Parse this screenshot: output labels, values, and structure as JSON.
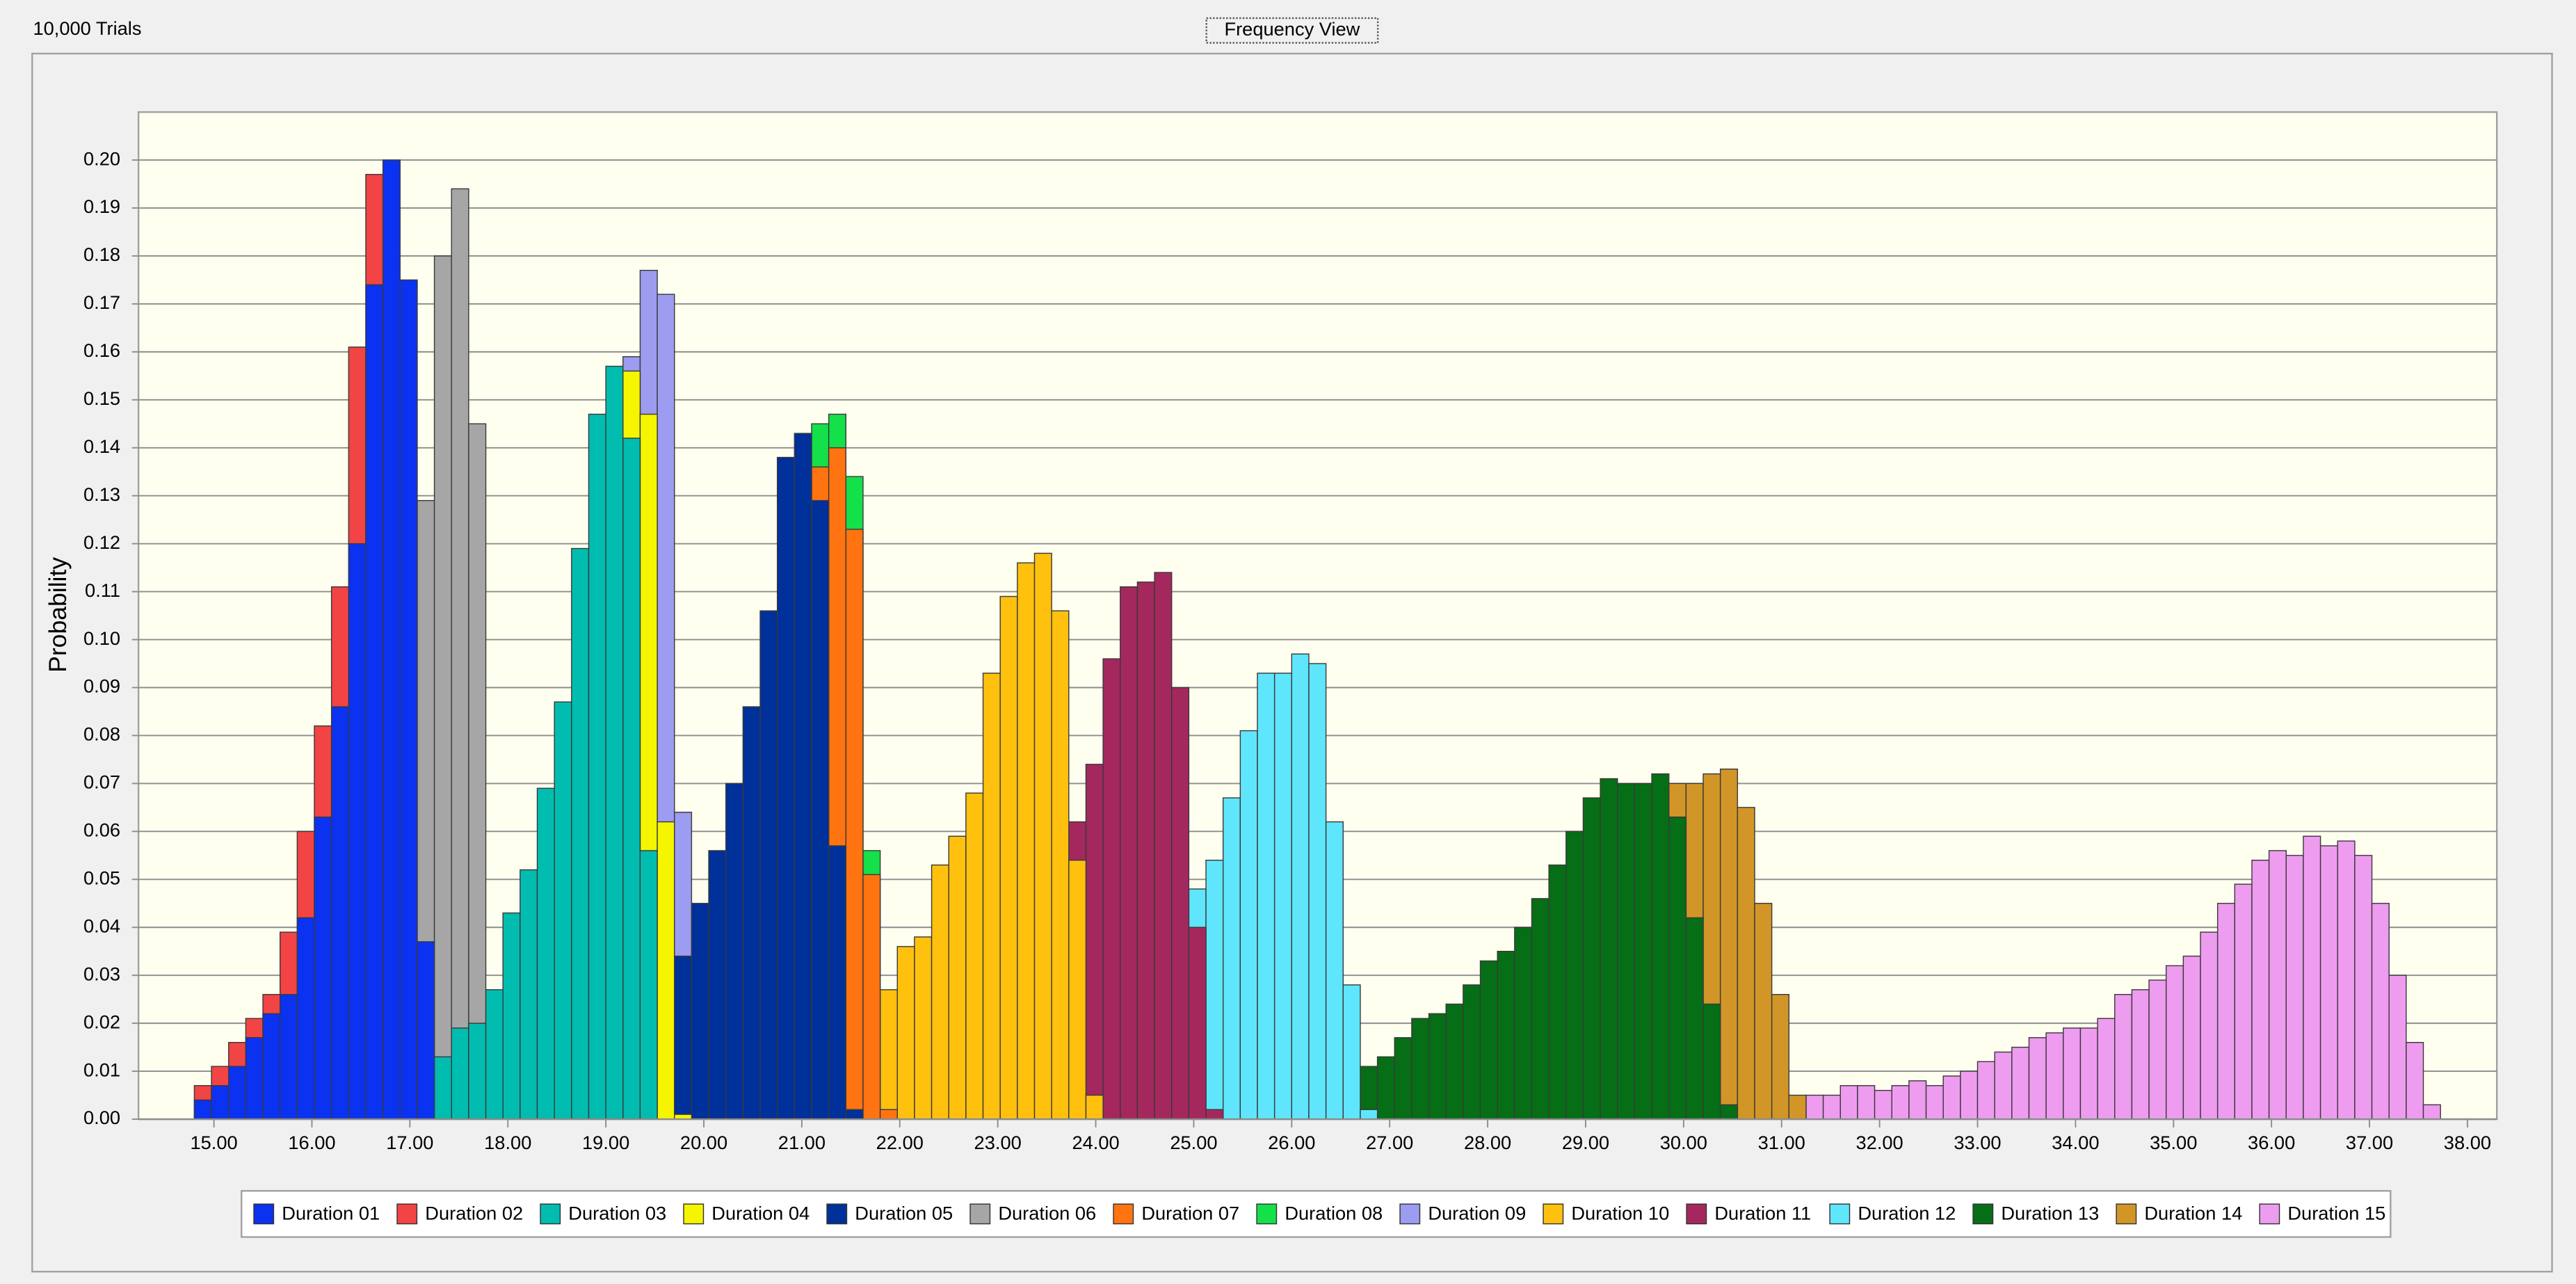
{
  "chart_data": {
    "type": "histogram",
    "trials_label": "10,000 Trials",
    "view_label": "Frequency View",
    "ylabel": "Probability",
    "xlim": [
      14.23,
      38.3
    ],
    "ylim": [
      0,
      0.21
    ],
    "xticks": [
      {
        "value": 15,
        "label": "15.00"
      },
      {
        "value": 16,
        "label": "16.00"
      },
      {
        "value": 17,
        "label": "17.00"
      },
      {
        "value": 18,
        "label": "18.00"
      },
      {
        "value": 19,
        "label": "19.00"
      },
      {
        "value": 20,
        "label": "20.00"
      },
      {
        "value": 21,
        "label": "21.00"
      },
      {
        "value": 22,
        "label": "22.00"
      },
      {
        "value": 23,
        "label": "23.00"
      },
      {
        "value": 24,
        "label": "24.00"
      },
      {
        "value": 25,
        "label": "25.00"
      },
      {
        "value": 26,
        "label": "26.00"
      },
      {
        "value": 27,
        "label": "27.00"
      },
      {
        "value": 28,
        "label": "28.00"
      },
      {
        "value": 29,
        "label": "29.00"
      },
      {
        "value": 30,
        "label": "30.00"
      },
      {
        "value": 31,
        "label": "31.00"
      },
      {
        "value": 32,
        "label": "32.00"
      },
      {
        "value": 33,
        "label": "33.00"
      },
      {
        "value": 34,
        "label": "34.00"
      },
      {
        "value": 35,
        "label": "35.00"
      },
      {
        "value": 36,
        "label": "36.00"
      },
      {
        "value": 37,
        "label": "37.00"
      },
      {
        "value": 38,
        "label": "38.00"
      }
    ],
    "yticks": [
      {
        "value": 0,
        "label": "0.00"
      },
      0.01,
      0.02,
      0.03,
      0.04,
      0.05,
      0.06,
      0.07,
      0.08,
      0.09,
      {
        "value": 0.1,
        "label": "0.10"
      },
      0.11,
      0.12,
      0.13,
      0.14,
      0.15,
      0.16,
      0.17,
      0.18,
      0.19,
      {
        "value": 0.2,
        "label": "0.20"
      }
    ],
    "grid": true,
    "legend": "bottom",
    "series": [
      {
        "name": "Duration 01",
        "color": "#0a32f0",
        "bins": [
          14.8,
          14.975,
          15.15,
          15.325,
          15.5,
          15.675,
          15.85,
          16.025,
          16.2,
          16.375,
          16.55,
          16.725,
          16.9,
          17.075,
          17.25
        ],
        "values": [
          0.004,
          0.007,
          0.011,
          0.017,
          0.022,
          0.026,
          0.042,
          0.063,
          0.086,
          0.12,
          0.174,
          0.2,
          0.175,
          0.037
        ]
      },
      {
        "name": "Duration 02",
        "color": "#f24444",
        "bins": [
          14.8,
          14.975,
          15.15,
          15.325,
          15.5,
          15.675,
          15.85,
          16.025,
          16.2,
          16.375,
          16.55,
          16.725
        ],
        "values": [
          0.007,
          0.011,
          0.016,
          0.021,
          0.026,
          0.039,
          0.06,
          0.082,
          0.111,
          0.161,
          0.197
        ]
      },
      {
        "name": "Duration 03",
        "color": "#00bdb0",
        "bins": [
          17.25,
          17.425,
          17.6,
          17.775,
          17.95,
          18.125,
          18.3,
          18.475,
          18.65,
          18.825,
          19.0,
          19.175,
          19.35,
          19.525
        ],
        "values": [
          0.013,
          0.019,
          0.02,
          0.027,
          0.043,
          0.052,
          0.069,
          0.087,
          0.119,
          0.147,
          0.157,
          0.142,
          0.056
        ]
      },
      {
        "name": "Duration 04",
        "color": "#f5f500",
        "bins": [
          19.175,
          19.35,
          19.525,
          19.7,
          19.875
        ],
        "values": [
          0.156,
          0.147,
          0.062,
          0.001
        ]
      },
      {
        "name": "Duration 05",
        "color": "#00309a",
        "bins": [
          19.7,
          19.875,
          20.05,
          20.225,
          20.4,
          20.575,
          20.75,
          20.925,
          21.1,
          21.275,
          21.45,
          21.625
        ],
        "values": [
          0.034,
          0.045,
          0.056,
          0.07,
          0.086,
          0.106,
          0.138,
          0.143,
          0.129,
          0.057,
          0.002
        ]
      },
      {
        "name": "Duration 06",
        "color": "#a6a6a6",
        "bins": [
          17.075,
          17.25,
          17.425,
          17.6,
          17.775
        ],
        "values": [
          0.129,
          0.18,
          0.194,
          0.145
        ]
      },
      {
        "name": "Duration 07",
        "color": "#ff7410",
        "bins": [
          21.1,
          21.275,
          21.45,
          21.625,
          21.8,
          21.975
        ],
        "values": [
          0.136,
          0.14,
          0.123,
          0.051,
          0.002
        ]
      },
      {
        "name": "Duration 08",
        "color": "#14e04a",
        "bins": [
          21.1,
          21.275,
          21.45,
          21.625,
          21.8
        ],
        "values": [
          0.145,
          0.147,
          0.134,
          0.056
        ]
      },
      {
        "name": "Duration 09",
        "color": "#9c9cf0",
        "bins": [
          19.175,
          19.35,
          19.525,
          19.7,
          19.875
        ],
        "values": [
          0.159,
          0.177,
          0.172,
          0.064
        ]
      },
      {
        "name": "Duration 10",
        "color": "#ffc10e",
        "bins": [
          21.8,
          21.975,
          22.15,
          22.325,
          22.5,
          22.675,
          22.85,
          23.025,
          23.2,
          23.375,
          23.55,
          23.725,
          23.9,
          24.075
        ],
        "values": [
          0.027,
          0.036,
          0.038,
          0.053,
          0.059,
          0.068,
          0.093,
          0.109,
          0.116,
          0.118,
          0.106,
          0.054,
          0.005
        ]
      },
      {
        "name": "Duration 11",
        "color": "#a4285e",
        "bins": [
          23.725,
          23.9,
          24.075,
          24.25,
          24.425,
          24.6,
          24.775,
          24.95,
          25.125,
          25.3
        ],
        "values": [
          0.062,
          0.074,
          0.096,
          0.111,
          0.112,
          0.114,
          0.09,
          0.04,
          0.002
        ]
      },
      {
        "name": "Duration 12",
        "color": "#5fe6fc",
        "bins": [
          24.95,
          25.125,
          25.3,
          25.475,
          25.65,
          25.825,
          26.0,
          26.175,
          26.35,
          26.525,
          26.7,
          26.875
        ],
        "values": [
          0.048,
          0.054,
          0.067,
          0.081,
          0.093,
          0.093,
          0.097,
          0.095,
          0.062,
          0.028,
          0.002
        ]
      },
      {
        "name": "Duration 13",
        "color": "#066e16",
        "bins": [
          26.7,
          26.875,
          27.05,
          27.225,
          27.4,
          27.575,
          27.75,
          27.925,
          28.1,
          28.275,
          28.45,
          28.625,
          28.8,
          28.975,
          29.15,
          29.325,
          29.5,
          29.675,
          29.85,
          30.025,
          30.2,
          30.375,
          30.55
        ],
        "values": [
          0.011,
          0.013,
          0.017,
          0.021,
          0.022,
          0.024,
          0.028,
          0.033,
          0.035,
          0.04,
          0.046,
          0.053,
          0.06,
          0.067,
          0.071,
          0.07,
          0.07,
          0.072,
          0.063,
          0.042,
          0.024,
          0.003
        ]
      },
      {
        "name": "Duration 14",
        "color": "#d29628",
        "bins": [
          29.85,
          30.025,
          30.2,
          30.375,
          30.55,
          30.725,
          30.9,
          31.075,
          31.25
        ],
        "values": [
          0.07,
          0.07,
          0.072,
          0.073,
          0.065,
          0.045,
          0.026,
          0.005
        ]
      },
      {
        "name": "Duration 15",
        "color": "#ee9cf0",
        "bins": [
          31.25,
          31.425,
          31.6,
          31.775,
          31.95,
          32.125,
          32.3,
          32.475,
          32.65,
          32.825,
          33.0,
          33.175,
          33.35,
          33.525,
          33.7,
          33.875,
          34.05,
          34.225,
          34.4,
          34.575,
          34.75,
          34.925,
          35.1,
          35.275,
          35.45,
          35.625,
          35.8,
          35.975,
          36.15,
          36.325,
          36.5,
          36.675,
          36.85,
          37.025,
          37.2,
          37.375,
          37.55,
          37.725
        ],
        "values": [
          0.005,
          0.005,
          0.007,
          0.007,
          0.006,
          0.007,
          0.008,
          0.007,
          0.009,
          0.01,
          0.012,
          0.014,
          0.015,
          0.017,
          0.018,
          0.019,
          0.019,
          0.021,
          0.026,
          0.027,
          0.029,
          0.032,
          0.034,
          0.039,
          0.045,
          0.049,
          0.054,
          0.056,
          0.055,
          0.059,
          0.057,
          0.058,
          0.055,
          0.045,
          0.03,
          0.016,
          0.003
        ]
      }
    ]
  }
}
